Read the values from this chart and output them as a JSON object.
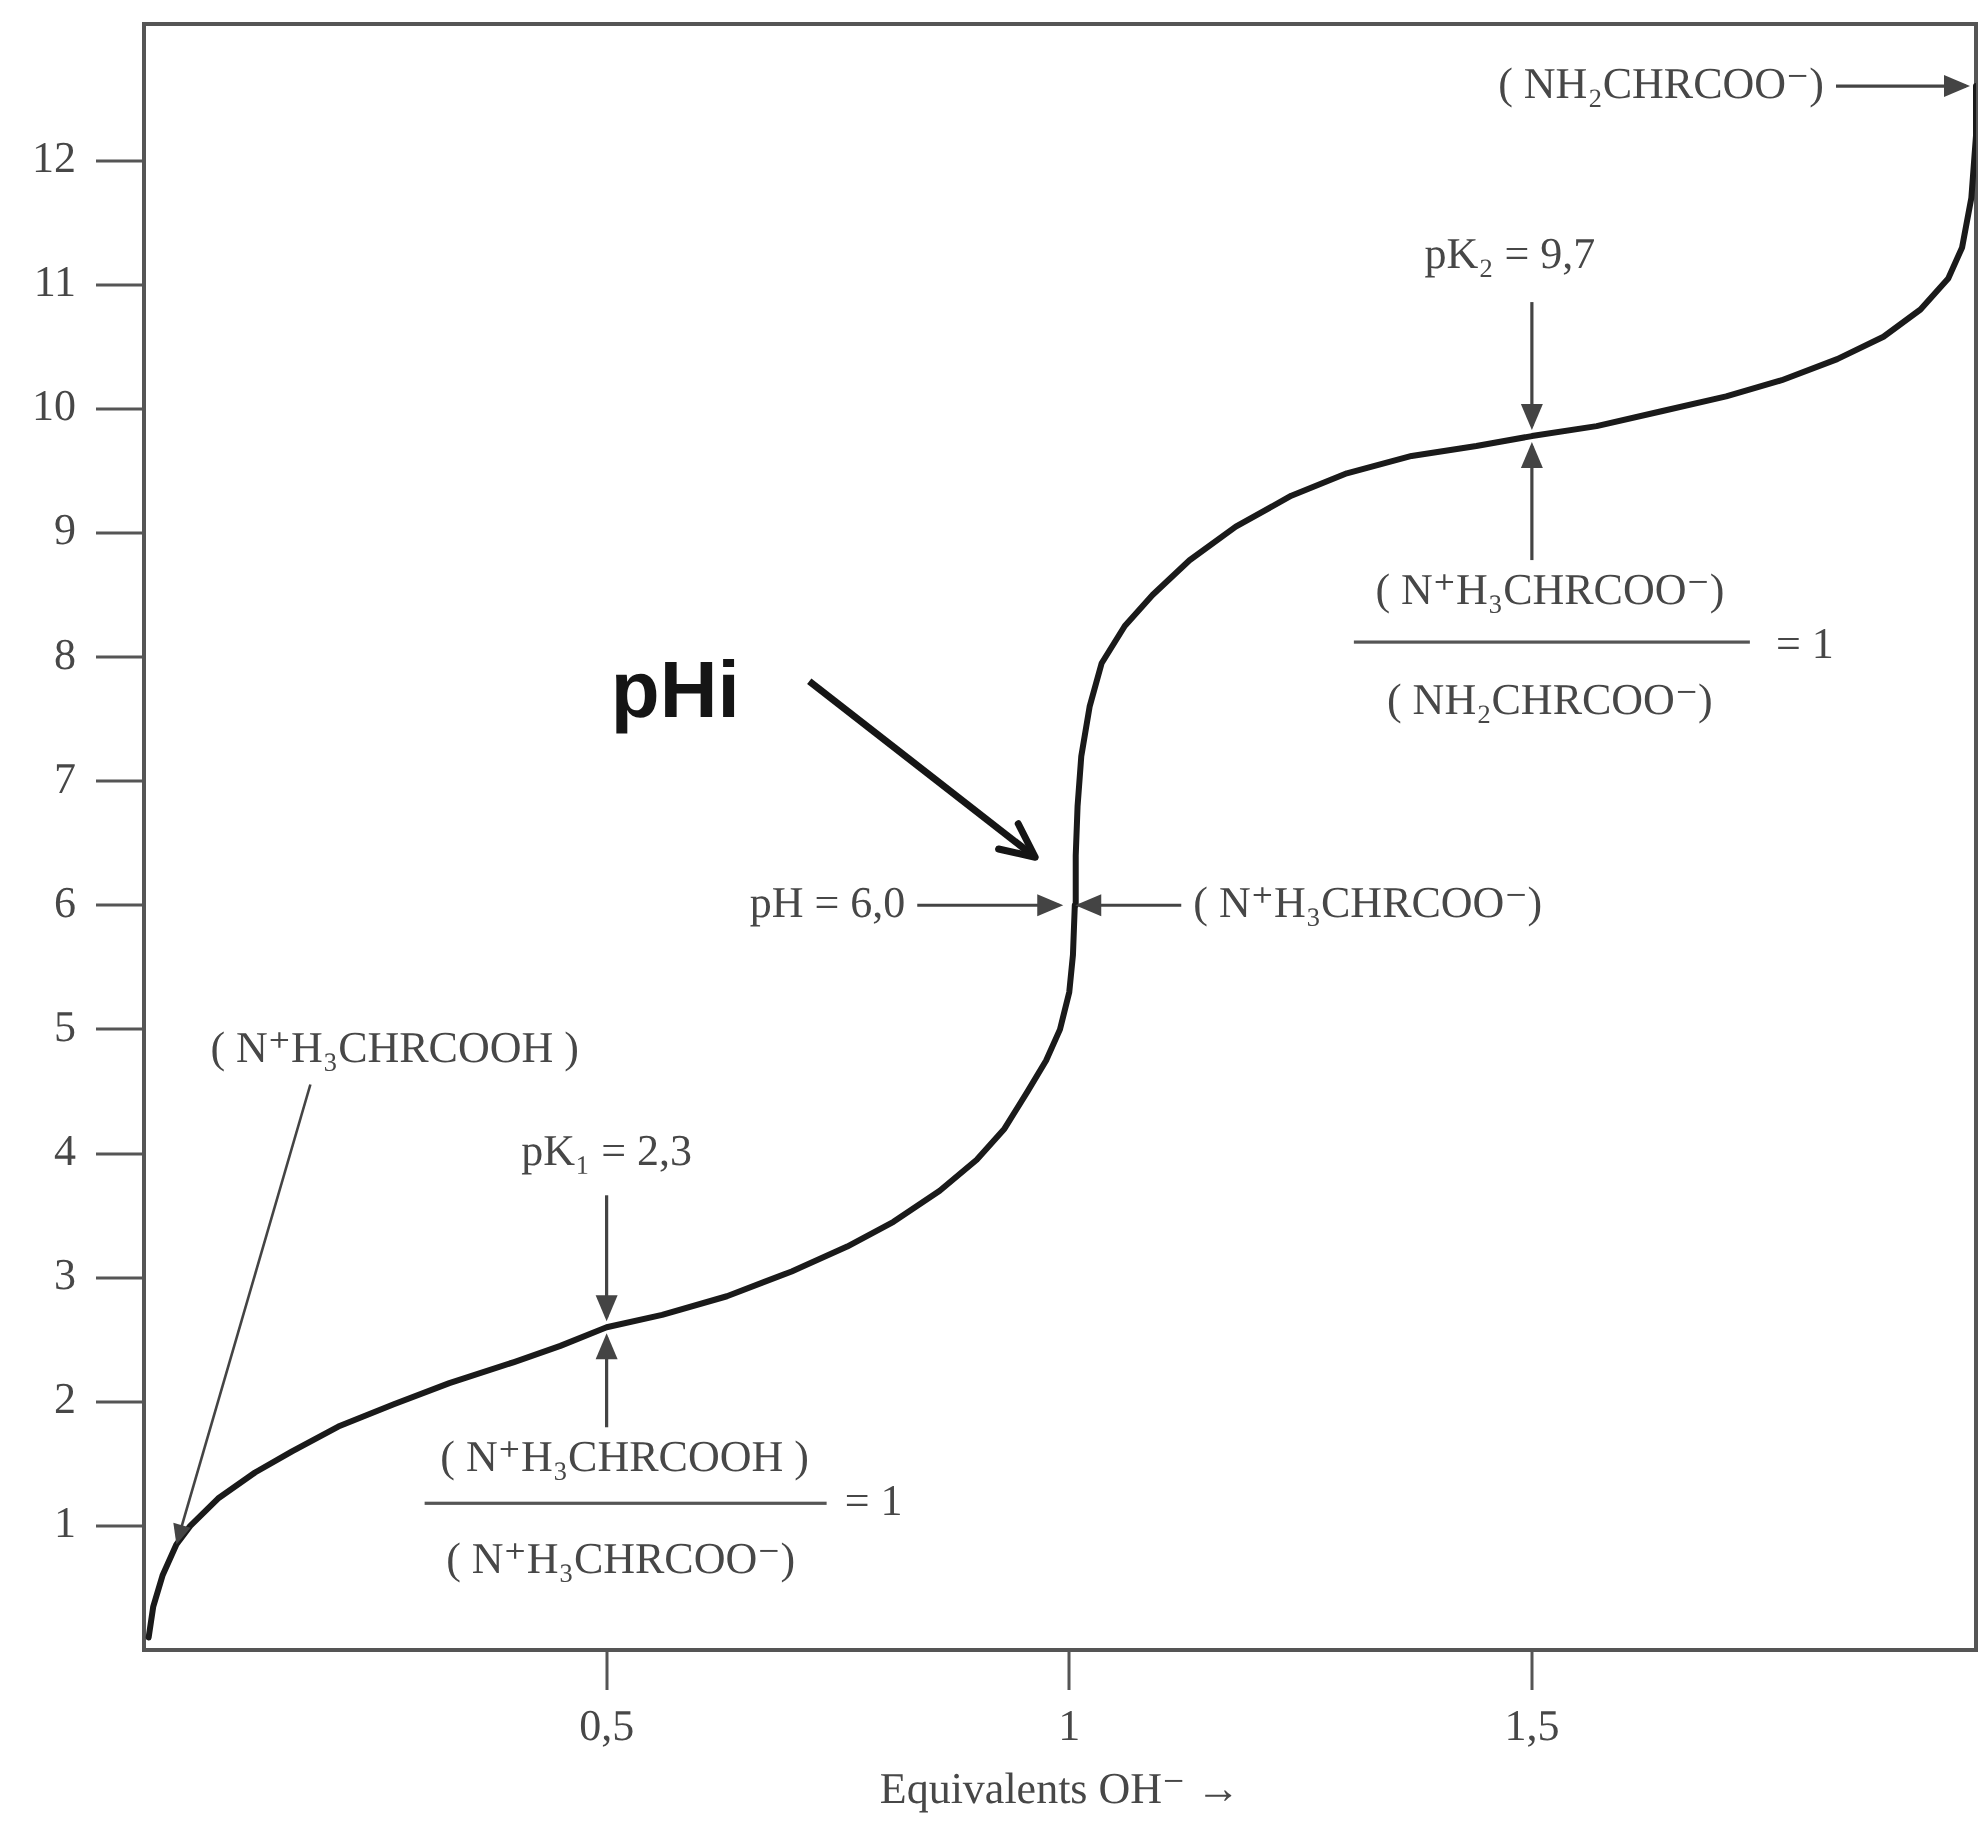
{
  "chart_data": {
    "type": "line",
    "xlabel": "Equivalents OH⁻ →",
    "color": "#1a1a1a",
    "line_style": "solid",
    "x": [
      0.005,
      0.01,
      0.02,
      0.035,
      0.05,
      0.08,
      0.12,
      0.16,
      0.21,
      0.27,
      0.33,
      0.4,
      0.45,
      0.5,
      0.56,
      0.63,
      0.7,
      0.76,
      0.81,
      0.86,
      0.9,
      0.93,
      0.955,
      0.975,
      0.99,
      1.0,
      1.004,
      1.006,
      1.007,
      1.009,
      1.013,
      1.022,
      1.035,
      1.06,
      1.09,
      1.13,
      1.18,
      1.24,
      1.3,
      1.37,
      1.44,
      1.5,
      1.57,
      1.64,
      1.71,
      1.77,
      1.83,
      1.88,
      1.92,
      1.95,
      1.965,
      1.975,
      1.98,
      1.98
    ],
    "values": [
      0.1,
      0.35,
      0.6,
      0.85,
      1.0,
      1.22,
      1.43,
      1.6,
      1.8,
      1.98,
      2.15,
      2.32,
      2.45,
      2.6,
      2.7,
      2.85,
      3.05,
      3.25,
      3.45,
      3.7,
      3.95,
      4.2,
      4.5,
      4.75,
      5.0,
      5.3,
      5.6,
      6.0,
      6.4,
      6.8,
      7.2,
      7.6,
      7.95,
      8.25,
      8.5,
      8.78,
      9.05,
      9.3,
      9.48,
      9.62,
      9.7,
      9.78,
      9.86,
      9.98,
      10.1,
      10.23,
      10.4,
      10.58,
      10.8,
      11.05,
      11.3,
      11.7,
      12.2,
      12.6
    ],
    "xlim": [
      0,
      1.98
    ],
    "ylim": [
      0,
      13.1
    ],
    "xticks": [
      {
        "value": 0.5,
        "label": "0,5"
      },
      1,
      {
        "value": 1.5,
        "label": "1,5"
      }
    ],
    "yticks": [
      1,
      2,
      3,
      4,
      5,
      6,
      7,
      8,
      9,
      10,
      11,
      12
    ],
    "annotations": [
      {
        "text": "( N⁺H₃CHRCOOH )",
        "x": 0.035,
        "y": 0.85
      },
      {
        "text": "pK₁ = 2,3",
        "x": 0.5,
        "y": 2.6
      },
      {
        "text": "( N⁺H₃CHRCOOH )",
        "x": 0.5,
        "y": 2.6
      },
      "( N⁺H₃CHRCOO⁻)",
      "= 1",
      {
        "text": "pH = 6,0",
        "x": 1,
        "y": 6
      },
      {
        "text": "( N⁺H₃CHRCOO⁻)",
        "x": 1,
        "y": 6
      },
      "pHi",
      {
        "text": "pK₂ = 9,7",
        "x": 1.5,
        "y": 9.78
      },
      {
        "text": "( N⁺H₃CHRCOO⁻)",
        "x": 1.5,
        "y": 9.78
      },
      "( NH₂CHRCOO⁻)",
      "= 1",
      {
        "text": "( NH₂CHRCOO⁻)",
        "x": 1.98,
        "y": 12.6
      }
    ]
  }
}
